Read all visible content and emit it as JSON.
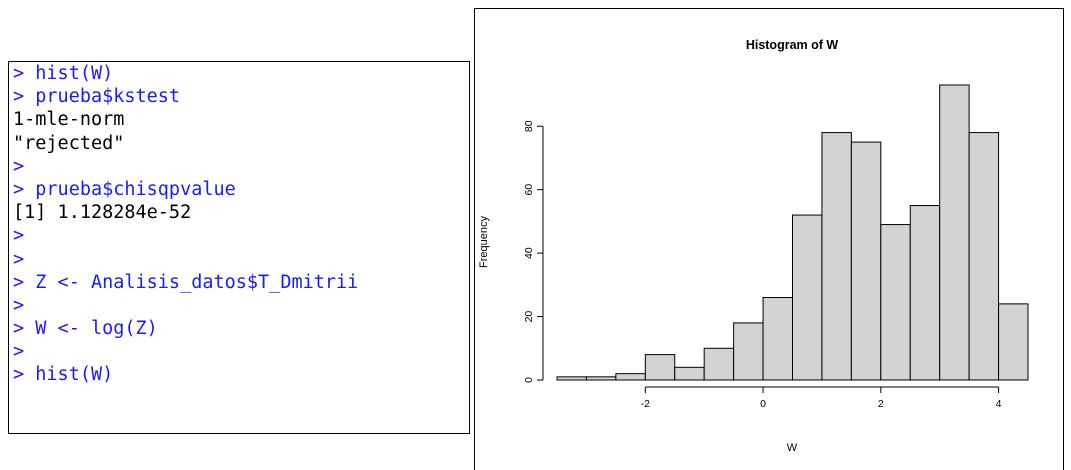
{
  "console": {
    "lines": [
      {
        "prompt": "> ",
        "text": "hist(W)",
        "kind": "cmd"
      },
      {
        "prompt": "> ",
        "text": "prueba$kstest",
        "kind": "cmd"
      },
      {
        "prompt": "",
        "text": "1-mle-norm",
        "kind": "out"
      },
      {
        "prompt": "",
        "text": "\"rejected\"",
        "kind": "out"
      },
      {
        "prompt": ">",
        "text": "",
        "kind": "cmd"
      },
      {
        "prompt": "> ",
        "text": "prueba$chisqpvalue",
        "kind": "cmd"
      },
      {
        "prompt": "",
        "text": "[1] 1.128284e-52",
        "kind": "out"
      },
      {
        "prompt": ">",
        "text": "",
        "kind": "cmd"
      },
      {
        "prompt": ">",
        "text": "",
        "kind": "cmd"
      },
      {
        "prompt": "> ",
        "text": "Z <- Analisis_datos$T_Dmitrii",
        "kind": "cmd"
      },
      {
        "prompt": ">",
        "text": "",
        "kind": "cmd"
      },
      {
        "prompt": "> ",
        "text": "W <- log(Z)",
        "kind": "cmd"
      },
      {
        "prompt": ">",
        "text": "",
        "kind": "cmd"
      },
      {
        "prompt": "> ",
        "text": "hist(W)",
        "kind": "cmd"
      }
    ]
  },
  "chart_data": {
    "type": "bar",
    "title": "Histogram of W",
    "xlabel": "W",
    "ylabel": "Frequency",
    "bins": [
      {
        "from": -3.5,
        "to": -3.0,
        "count": 1
      },
      {
        "from": -3.0,
        "to": -2.5,
        "count": 1
      },
      {
        "from": -2.5,
        "to": -2.0,
        "count": 2
      },
      {
        "from": -2.0,
        "to": -1.5,
        "count": 8
      },
      {
        "from": -1.5,
        "to": -1.0,
        "count": 4
      },
      {
        "from": -1.0,
        "to": -0.5,
        "count": 10
      },
      {
        "from": -0.5,
        "to": 0.0,
        "count": 18
      },
      {
        "from": 0.0,
        "to": 0.5,
        "count": 26
      },
      {
        "from": 0.5,
        "to": 1.0,
        "count": 52
      },
      {
        "from": 1.0,
        "to": 1.5,
        "count": 78
      },
      {
        "from": 1.5,
        "to": 2.0,
        "count": 75
      },
      {
        "from": 2.0,
        "to": 2.5,
        "count": 49
      },
      {
        "from": 2.5,
        "to": 3.0,
        "count": 55
      },
      {
        "from": 3.0,
        "to": 3.5,
        "count": 93
      },
      {
        "from": 3.5,
        "to": 4.0,
        "count": 78
      },
      {
        "from": 4.0,
        "to": 4.5,
        "count": 24
      }
    ],
    "x_ticks": [
      -2,
      0,
      2,
      4
    ],
    "y_ticks": [
      0,
      20,
      40,
      60,
      80
    ],
    "xlim": [
      -3.5,
      4.5
    ],
    "ylim": [
      0,
      93
    ],
    "bar_color": "#d3d3d3",
    "edge_color": "#000000",
    "grid": false
  }
}
